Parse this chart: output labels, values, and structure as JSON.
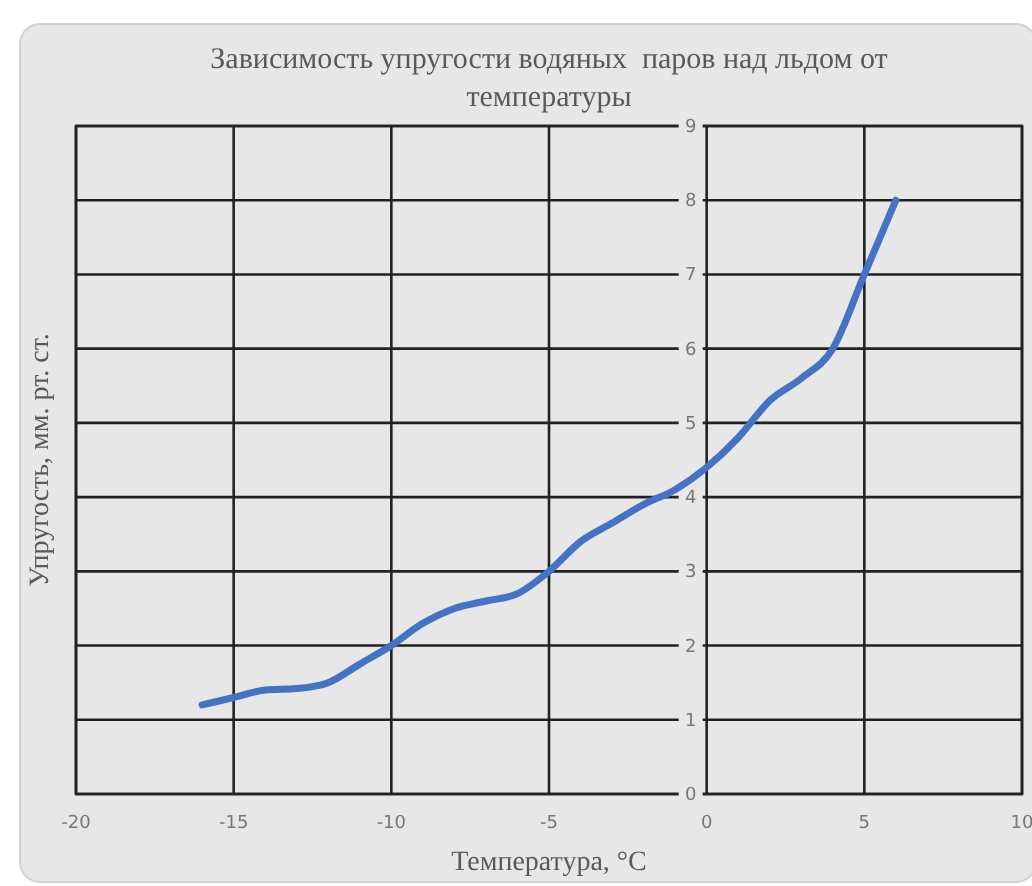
{
  "chart_data": {
    "type": "line",
    "title": "Зависимость упругости водяных  паров над льдом от температуры",
    "xlabel": "Температура, °C",
    "ylabel": "Упругость, мм. рт. ст.",
    "x": [
      -16,
      -15,
      -14,
      -13,
      -12,
      -11,
      -10,
      -9,
      -8,
      -7,
      -6,
      -5,
      -4,
      -3,
      -2,
      -1,
      0,
      1,
      2,
      3,
      4,
      5,
      6
    ],
    "series": [
      {
        "color": "#4472c4",
        "values": [
          1.2,
          1.3,
          1.4,
          1.42,
          1.5,
          1.75,
          2.0,
          2.3,
          2.5,
          2.6,
          2.7,
          3.0,
          3.4,
          3.65,
          3.9,
          4.1,
          4.4,
          4.8,
          5.3,
          5.6,
          6.0,
          7.0,
          8.0
        ]
      }
    ],
    "xlim": [
      -20,
      10
    ],
    "xticks": [
      -20,
      -15,
      -10,
      -5,
      0,
      5,
      10
    ],
    "ylim": [
      0,
      9
    ],
    "yticks": [
      0,
      1,
      2,
      3,
      4,
      5,
      6,
      7,
      8,
      9
    ],
    "grid": true,
    "marker": "none",
    "line_style": "solid"
  }
}
